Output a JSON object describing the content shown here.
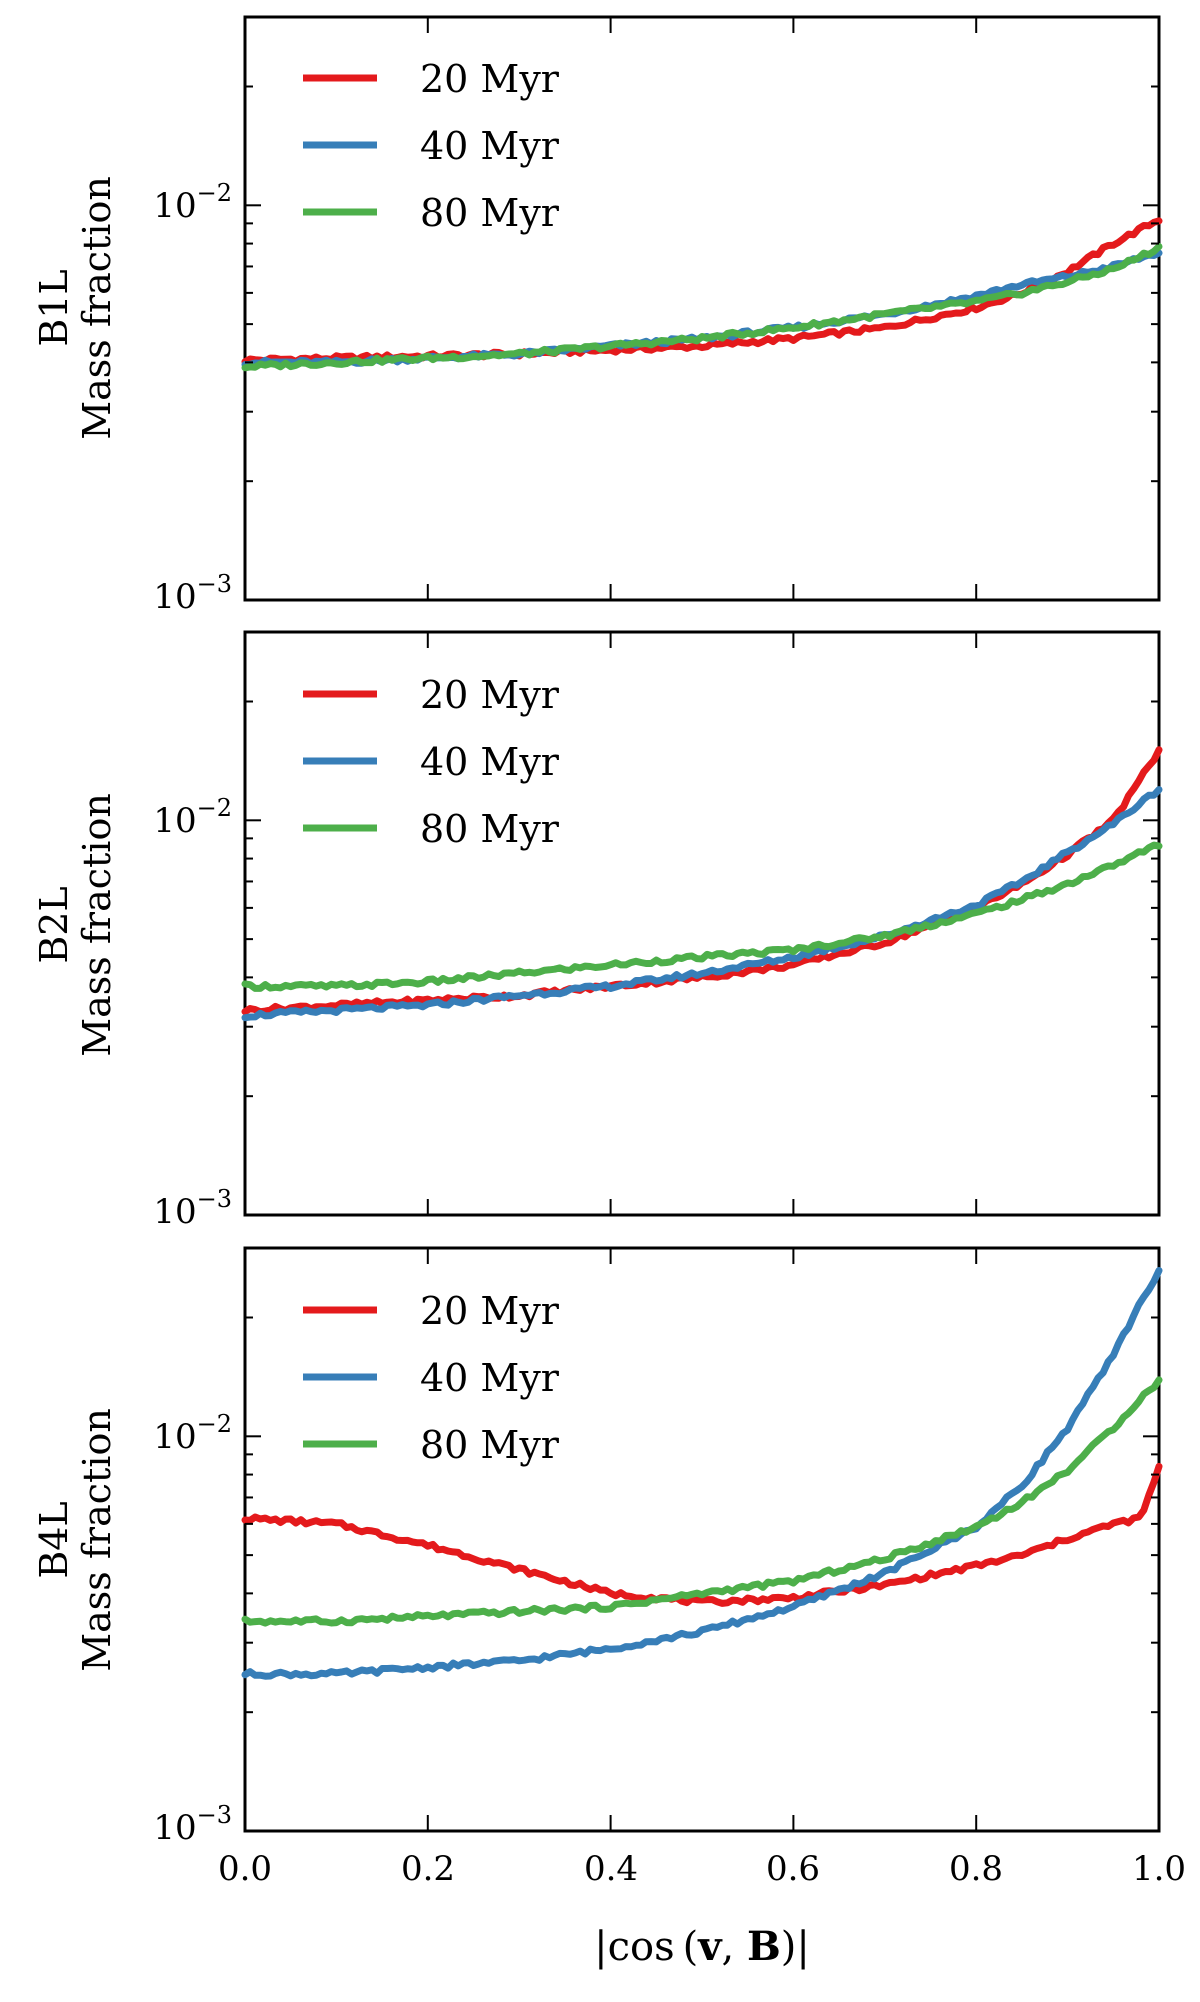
{
  "chart_data": [
    {
      "type": "line",
      "panel_label": "B1L",
      "ylabel": "Mass fraction",
      "xlim": [
        0.0,
        1.0
      ],
      "ylim": [
        0.001,
        0.03
      ],
      "yscale": "log",
      "legend_position": "top-left",
      "x": [
        0.0,
        0.1,
        0.2,
        0.3,
        0.4,
        0.5,
        0.6,
        0.7,
        0.8,
        0.85,
        0.9,
        0.95,
        1.0
      ],
      "series": [
        {
          "name": "20 Myr",
          "color": "#e41a1c",
          "values": [
            0.00405,
            0.0041,
            0.00415,
            0.0042,
            0.0043,
            0.0044,
            0.0046,
            0.0049,
            0.0055,
            0.006,
            0.0068,
            0.008,
            0.0092
          ]
        },
        {
          "name": "40 Myr",
          "color": "#377eb8",
          "values": [
            0.004,
            0.004,
            0.0041,
            0.0042,
            0.0044,
            0.0046,
            0.0049,
            0.0053,
            0.0059,
            0.0063,
            0.0066,
            0.007,
            0.0076
          ]
        },
        {
          "name": "80 Myr",
          "color": "#4daf4a",
          "values": [
            0.0039,
            0.004,
            0.0041,
            0.0042,
            0.0044,
            0.0046,
            0.0049,
            0.0053,
            0.0057,
            0.006,
            0.0064,
            0.0069,
            0.0078
          ]
        }
      ]
    },
    {
      "type": "line",
      "panel_label": "B2L",
      "ylabel": "Mass fraction",
      "xlim": [
        0.0,
        1.0
      ],
      "ylim": [
        0.001,
        0.03
      ],
      "yscale": "log",
      "legend_position": "top-left",
      "x": [
        0.0,
        0.1,
        0.2,
        0.3,
        0.4,
        0.5,
        0.6,
        0.7,
        0.8,
        0.85,
        0.9,
        0.95,
        1.0
      ],
      "series": [
        {
          "name": "20 Myr",
          "color": "#e41a1c",
          "values": [
            0.0033,
            0.0034,
            0.0035,
            0.0036,
            0.0038,
            0.004,
            0.0043,
            0.0049,
            0.006,
            0.0069,
            0.0082,
            0.01,
            0.015
          ]
        },
        {
          "name": "40 Myr",
          "color": "#377eb8",
          "values": [
            0.0032,
            0.0033,
            0.0034,
            0.0036,
            0.0038,
            0.0041,
            0.0045,
            0.0051,
            0.0061,
            0.007,
            0.0083,
            0.0098,
            0.012
          ]
        },
        {
          "name": "80 Myr",
          "color": "#4daf4a",
          "values": [
            0.0038,
            0.0038,
            0.0039,
            0.0041,
            0.0043,
            0.0045,
            0.0047,
            0.0051,
            0.0058,
            0.0063,
            0.0069,
            0.0077,
            0.0087
          ]
        }
      ]
    },
    {
      "type": "line",
      "panel_label": "B4L",
      "ylabel": "Mass fraction",
      "xlabel": "|cos (v, B)|",
      "xlim": [
        0.0,
        1.0
      ],
      "ylim": [
        0.001,
        0.03
      ],
      "yscale": "log",
      "legend_position": "top-left",
      "x": [
        0.0,
        0.1,
        0.2,
        0.3,
        0.4,
        0.5,
        0.6,
        0.7,
        0.8,
        0.85,
        0.9,
        0.95,
        0.98,
        1.0
      ],
      "series": [
        {
          "name": "20 Myr",
          "color": "#e41a1c",
          "values": [
            0.0062,
            0.006,
            0.0053,
            0.0046,
            0.004,
            0.0038,
            0.0039,
            0.0042,
            0.0047,
            0.005,
            0.0055,
            0.006,
            0.0062,
            0.0083
          ]
        },
        {
          "name": "40 Myr",
          "color": "#377eb8",
          "values": [
            0.0025,
            0.0025,
            0.0026,
            0.0027,
            0.0029,
            0.0032,
            0.0037,
            0.0045,
            0.0059,
            0.0075,
            0.0105,
            0.016,
            0.022,
            0.026
          ]
        },
        {
          "name": "80 Myr",
          "color": "#4daf4a",
          "values": [
            0.0034,
            0.0034,
            0.0035,
            0.0036,
            0.0037,
            0.004,
            0.0043,
            0.0049,
            0.0059,
            0.0068,
            0.0082,
            0.0105,
            0.0125,
            0.0138
          ]
        }
      ]
    }
  ],
  "x_ticks": [
    "0.0",
    "0.2",
    "0.4",
    "0.6",
    "0.8",
    "1.0"
  ],
  "y_tick_major": [
    {
      "base": "10",
      "exp": "−2"
    },
    {
      "base": "10",
      "exp": "−3"
    }
  ],
  "xlabel_parts": {
    "bar": "|",
    "func": "cos",
    "open": "(",
    "v": "v",
    "comma": ", ",
    "B": "B",
    "close": ")"
  }
}
